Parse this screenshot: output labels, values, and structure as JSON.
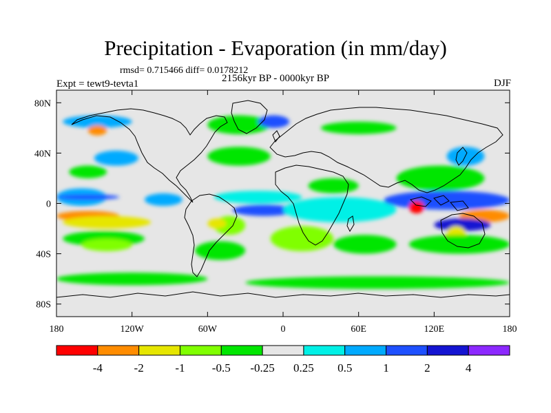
{
  "title": "Precipitation - Evaporation (in mm/day)",
  "stats_line": "rmsd= 0.715466 diff= 0.0178212",
  "experiment": "Expt = tewt9-tevta1",
  "period": "2156kyr BP - 0000kyr BP",
  "season": "DJF",
  "map": {
    "lon_range": [
      -180,
      180
    ],
    "lat_range": [
      -90,
      90
    ],
    "lat_ticks": [
      {
        "value": 80,
        "label": "80N"
      },
      {
        "value": 40,
        "label": "40N"
      },
      {
        "value": 0,
        "label": "0"
      },
      {
        "value": -40,
        "label": "40S"
      },
      {
        "value": -80,
        "label": "80S"
      }
    ],
    "lon_ticks": [
      {
        "value": -180,
        "label": "180"
      },
      {
        "value": -120,
        "label": "120W"
      },
      {
        "value": -60,
        "label": "60W"
      },
      {
        "value": 0,
        "label": "0"
      },
      {
        "value": 60,
        "label": "60E"
      },
      {
        "value": 120,
        "label": "120E"
      },
      {
        "value": 180,
        "label": "180"
      }
    ],
    "background_color": "#e6e6e6",
    "coastline_color": "#000000"
  },
  "colorbar": {
    "labels": [
      "-4",
      "-2",
      "-1",
      "-0.5",
      "-0.25",
      "0.25",
      "0.5",
      "1",
      "2",
      "4"
    ],
    "colors": [
      "#ff0000",
      "#ff8c00",
      "#e6e600",
      "#80ff00",
      "#00e600",
      "#e6e6e6",
      "#00f0e6",
      "#00aaff",
      "#1e50ff",
      "#1414d2",
      "#8c28ff"
    ]
  },
  "fields": [
    {
      "color": "#00aaff",
      "lon": [
        -180,
        -140
      ],
      "lat": [
        12,
        -2
      ],
      "comment": "tropical Pacific north band"
    },
    {
      "color": "#1e50ff",
      "lon": [
        -180,
        -130
      ],
      "lat": [
        7,
        3
      ]
    },
    {
      "color": "#ff8c00",
      "lon": [
        -180,
        -130
      ],
      "lat": [
        -6,
        -14
      ]
    },
    {
      "color": "#e6e600",
      "lon": [
        -175,
        -105
      ],
      "lat": [
        -10,
        -20
      ]
    },
    {
      "color": "#00e600",
      "lon": [
        -175,
        -110
      ],
      "lat": [
        -22,
        -34
      ]
    },
    {
      "color": "#80ff00",
      "lon": [
        -160,
        -120
      ],
      "lat": [
        -28,
        -38
      ]
    },
    {
      "color": "#00aaff",
      "lon": [
        -110,
        -80
      ],
      "lat": [
        8,
        -2
      ]
    },
    {
      "color": "#00aaff",
      "lon": [
        -175,
        -120
      ],
      "lat": [
        70,
        60
      ]
    },
    {
      "color": "#ff8c00",
      "lon": [
        -155,
        -140
      ],
      "lat": [
        62,
        54
      ]
    },
    {
      "color": "#00aaff",
      "lon": [
        -150,
        -115
      ],
      "lat": [
        42,
        30
      ]
    },
    {
      "color": "#00e600",
      "lon": [
        -170,
        -140
      ],
      "lat": [
        30,
        20
      ]
    },
    {
      "color": "#00f0e6",
      "lon": [
        -55,
        15
      ],
      "lat": [
        10,
        0
      ]
    },
    {
      "color": "#1e50ff",
      "lon": [
        -40,
        10
      ],
      "lat": [
        -1,
        -10
      ]
    },
    {
      "color": "#80ff00",
      "lon": [
        -55,
        -30
      ],
      "lat": [
        -10,
        -25
      ]
    },
    {
      "color": "#e6e600",
      "lon": [
        -60,
        -45
      ],
      "lat": [
        -12,
        -20
      ]
    },
    {
      "color": "#00e600",
      "lon": [
        -70,
        -30
      ],
      "lat": [
        -30,
        -45
      ]
    },
    {
      "color": "#00e600",
      "lon": [
        -60,
        -10
      ],
      "lat": [
        45,
        30
      ]
    },
    {
      "color": "#00e600",
      "lon": [
        -60,
        -10
      ],
      "lat": [
        70,
        55
      ]
    },
    {
      "color": "#1e50ff",
      "lon": [
        -20,
        5
      ],
      "lat": [
        70,
        60
      ]
    },
    {
      "color": "#00e600",
      "lon": [
        30,
        90
      ],
      "lat": [
        65,
        55
      ]
    },
    {
      "color": "#00e600",
      "lon": [
        20,
        60
      ],
      "lat": [
        20,
        8
      ]
    },
    {
      "color": "#1e50ff",
      "lon": [
        20,
        80
      ],
      "lat": [
        -2,
        -12
      ]
    },
    {
      "color": "#1414d2",
      "lon": [
        25,
        55
      ],
      "lat": [
        -4,
        -12
      ]
    },
    {
      "color": "#00f0e6",
      "lon": [
        0,
        90
      ],
      "lat": [
        5,
        -15
      ]
    },
    {
      "color": "#80ff00",
      "lon": [
        -10,
        40
      ],
      "lat": [
        -18,
        -38
      ]
    },
    {
      "color": "#00e600",
      "lon": [
        40,
        90
      ],
      "lat": [
        -25,
        -40
      ]
    },
    {
      "color": "#1e50ff",
      "lon": [
        80,
        180
      ],
      "lat": [
        10,
        -5
      ]
    },
    {
      "color": "#ff0000",
      "lon": [
        100,
        112
      ],
      "lat": [
        2,
        -8
      ]
    },
    {
      "color": "#ff8c00",
      "lon": [
        140,
        180
      ],
      "lat": [
        -5,
        -15
      ]
    },
    {
      "color": "#1414d2",
      "lon": [
        120,
        165
      ],
      "lat": [
        -12,
        -22
      ]
    },
    {
      "color": "#e6e600",
      "lon": [
        130,
        145
      ],
      "lat": [
        -18,
        -30
      ]
    },
    {
      "color": "#00e600",
      "lon": [
        100,
        180
      ],
      "lat": [
        -25,
        -40
      ]
    },
    {
      "color": "#00e600",
      "lon": [
        90,
        160
      ],
      "lat": [
        30,
        10
      ]
    },
    {
      "color": "#00aaff",
      "lon": [
        130,
        160
      ],
      "lat": [
        45,
        30
      ]
    },
    {
      "color": "#00e600",
      "lon": [
        -30,
        180
      ],
      "lat": [
        -58,
        -68
      ]
    },
    {
      "color": "#00e600",
      "lon": [
        -180,
        -60
      ],
      "lat": [
        -55,
        -65
      ]
    }
  ]
}
